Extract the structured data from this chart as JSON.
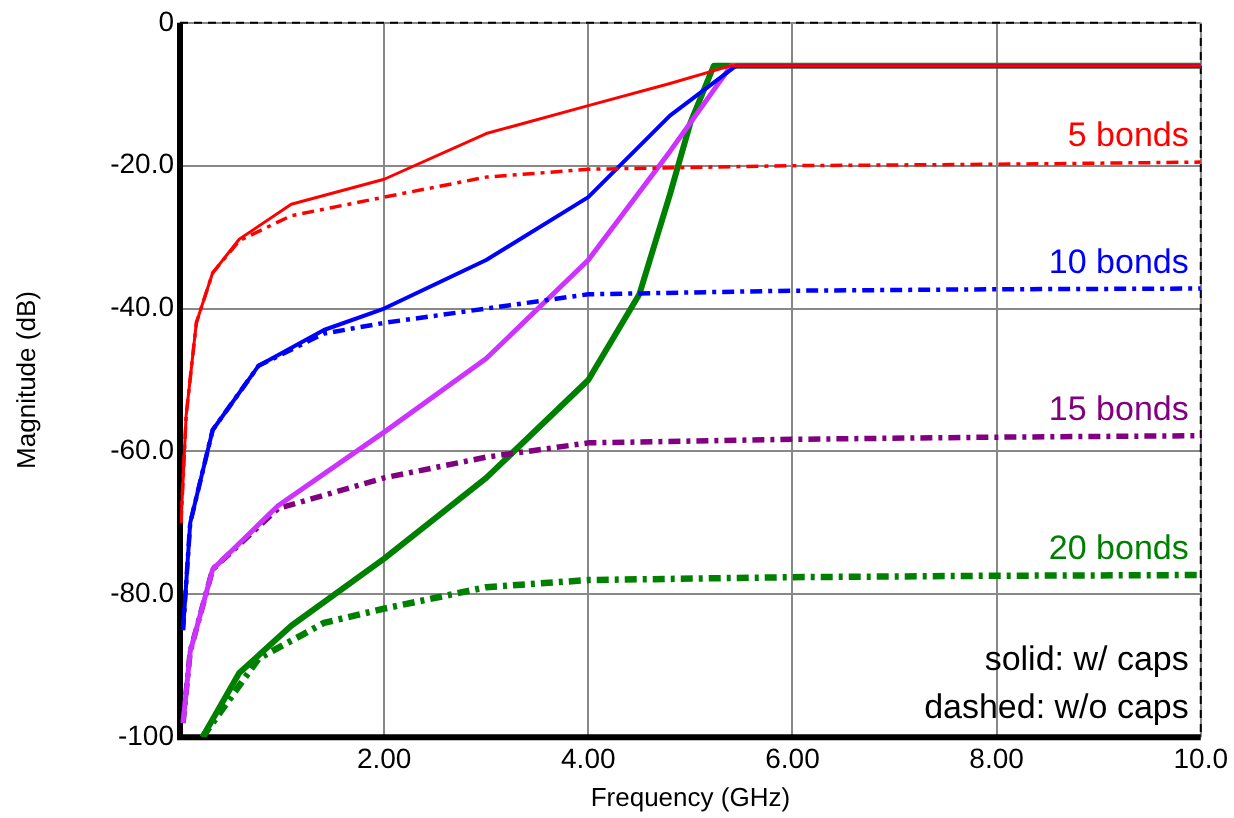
{
  "chart_data": {
    "type": "line",
    "xlabel": "Frequency (GHz)",
    "ylabel": "Magnitude (dB)",
    "xlim": [
      0,
      10
    ],
    "ylim": [
      -100,
      0
    ],
    "xticks": [
      {
        "value": 0,
        "label": null
      },
      {
        "value": 2,
        "label": "2.00"
      },
      {
        "value": 4,
        "label": "4.00"
      },
      {
        "value": 6,
        "label": "6.00"
      },
      {
        "value": 8,
        "label": "8.00"
      },
      {
        "value": 10,
        "label": "10.0"
      }
    ],
    "yticks": [
      {
        "value": -100,
        "label": "-100"
      },
      {
        "value": -80,
        "label": "-80.0"
      },
      {
        "value": -60,
        "label": "-60.0"
      },
      {
        "value": -40,
        "label": "-40.0"
      },
      {
        "value": -20,
        "label": "-20.0"
      },
      {
        "value": 0,
        "label": "0"
      }
    ],
    "grid": true,
    "legend": false,
    "marker": "none",
    "annotations": [
      "solid: w/ caps",
      "dashed: w/o caps"
    ],
    "series": [
      {
        "color": "#ff0000",
        "line_style": "solid",
        "x": [
          0.01,
          0.06,
          0.16,
          0.32,
          0.58,
          1.09,
          2,
          3,
          4,
          4.8,
          5.4,
          10
        ],
        "values": [
          -70,
          -55,
          -42,
          -35,
          -30.3,
          -25.4,
          -21.9,
          -15.5,
          -11.6,
          -8.5,
          -6,
          -6
        ]
      },
      {
        "name": "5 bonds",
        "color": "#ff0000",
        "line_style": "dashed",
        "x": [
          0.01,
          0.06,
          0.16,
          0.32,
          0.58,
          1.09,
          2,
          3,
          4,
          6,
          8,
          10
        ],
        "values": [
          -70,
          -55,
          -42,
          -35,
          -30.5,
          -27,
          -24.4,
          -21.6,
          -20.5,
          -20,
          -19.8,
          -19.5
        ]
      },
      {
        "color": "#0000ff",
        "line_style": "solid",
        "x": [
          0.03,
          0.1,
          0.32,
          0.77,
          1.41,
          2,
          3,
          4,
          4.8,
          5.45,
          10
        ],
        "values": [
          -85,
          -70,
          -57,
          -48,
          -43,
          -40,
          -33.2,
          -24.4,
          -13,
          -6,
          -6
        ]
      },
      {
        "name": "10 bonds",
        "color": "#0000ff",
        "line_style": "dashed",
        "x": [
          0.03,
          0.1,
          0.32,
          0.77,
          1.41,
          2,
          3,
          4,
          6,
          8,
          10
        ],
        "values": [
          -85,
          -70,
          -57,
          -48,
          -43.5,
          -42,
          -40,
          -38,
          -37.5,
          -37.3,
          -37.2
        ]
      },
      {
        "color": "#cc33ff",
        "line_style": "solid",
        "x": [
          0.03,
          0.1,
          0.32,
          0.96,
          2,
          3,
          4,
          4.8,
          5.4,
          10
        ],
        "values": [
          -98,
          -88,
          -76.5,
          -67.6,
          -57.3,
          -47,
          -33.2,
          -18,
          -6,
          -6
        ]
      },
      {
        "name": "15 bonds",
        "color": "#800080",
        "line_style": "dashed",
        "x": [
          0.03,
          0.1,
          0.32,
          0.96,
          2,
          3,
          4,
          6,
          8,
          10
        ],
        "values": [
          -98,
          -88,
          -76.5,
          -68,
          -63.7,
          -60.8,
          -58.8,
          -58.3,
          -58,
          -57.8
        ]
      },
      {
        "color": "#008000",
        "line_style": "solid",
        "x": [
          0.22,
          0.58,
          1.09,
          2,
          3,
          4,
          4.5,
          4.8,
          5,
          5.23,
          10
        ],
        "values": [
          -100,
          -91,
          -84.4,
          -75,
          -63.7,
          -50,
          -38,
          -24,
          -14,
          -6,
          -6
        ]
      },
      {
        "name": "20 bonds",
        "color": "#008000",
        "line_style": "dashed",
        "x": [
          0.22,
          0.77,
          1.41,
          2,
          3,
          4,
          6,
          8,
          10
        ],
        "values": [
          -100,
          -89,
          -84,
          -82,
          -79,
          -78,
          -77.6,
          -77.4,
          -77.3
        ]
      }
    ]
  }
}
